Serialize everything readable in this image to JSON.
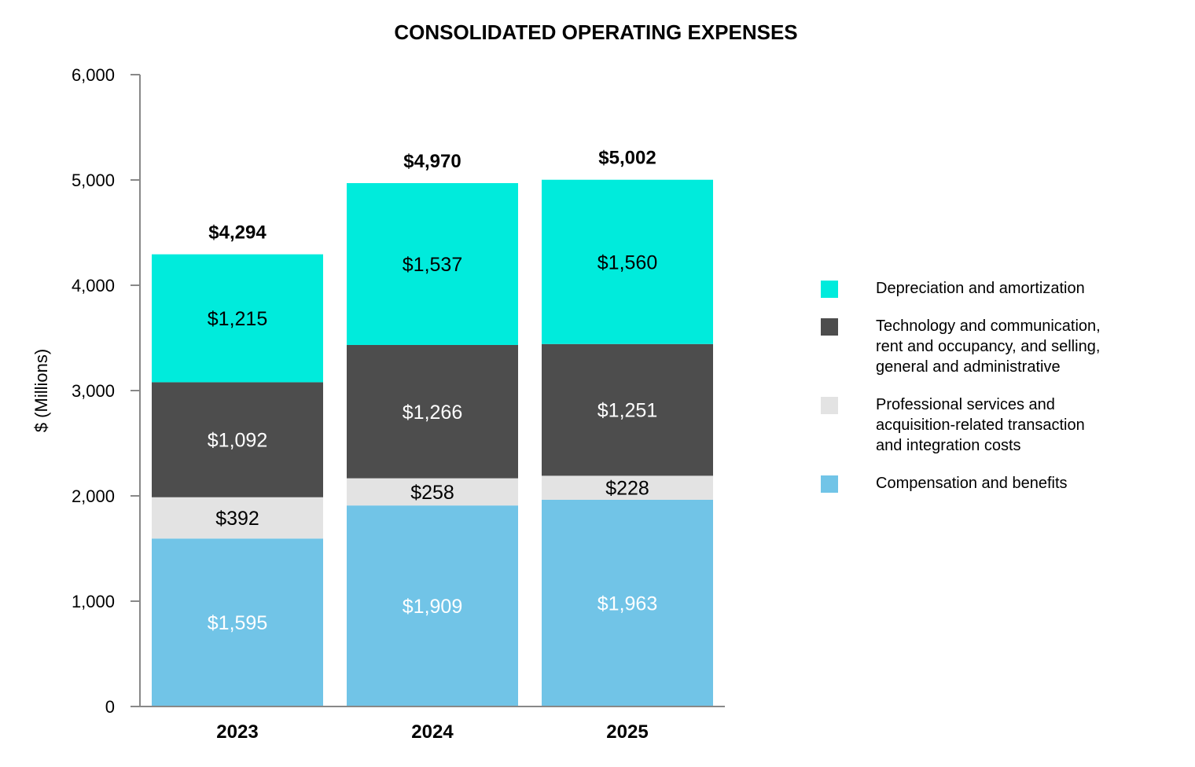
{
  "chart_data": {
    "type": "bar",
    "stacked": true,
    "title": "CONSOLIDATED OPERATING EXPENSES",
    "ylabel": "$ (Millions)",
    "xlabel": "",
    "ylim": [
      0,
      6000
    ],
    "yticks": [
      0,
      1000,
      2000,
      3000,
      4000,
      5000,
      6000
    ],
    "ytick_labels": [
      "0",
      "1,000",
      "2,000",
      "3,000",
      "4,000",
      "5,000",
      "6,000"
    ],
    "categories": [
      "2023",
      "2024",
      "2025"
    ],
    "grid": false,
    "legend_position": "right",
    "series": [
      {
        "name": "Compensation and benefits",
        "color": "#71c4e7",
        "values": [
          1595,
          1909,
          1963
        ],
        "labels": [
          "$1,595",
          "$1,909",
          "$1,963"
        ],
        "label_color": "#ffffff"
      },
      {
        "name": "Professional services and\n acquisition-related transaction\n and integration costs",
        "color": "#e3e3e3",
        "values": [
          392,
          258,
          228
        ],
        "labels": [
          "$392",
          "$258",
          "$228"
        ],
        "label_color": "#000000"
      },
      {
        "name": "Technology and communication,\nrent and occupancy, and selling,\ngeneral and administrative",
        "color": "#4d4d4d",
        "values": [
          1092,
          1266,
          1251
        ],
        "labels": [
          "$1,092",
          "$1,266",
          "$1,251"
        ],
        "label_color": "#ffffff"
      },
      {
        "name": "Depreciation and amortization",
        "color": "#00ebdc",
        "values": [
          1215,
          1537,
          1560
        ],
        "labels": [
          "$1,215",
          "$1,537",
          "$1,560"
        ],
        "label_color": "#000000"
      }
    ],
    "totals": [
      4294,
      4970,
      5002
    ],
    "total_labels": [
      "$4,294",
      "$4,970",
      "$5,002"
    ]
  }
}
